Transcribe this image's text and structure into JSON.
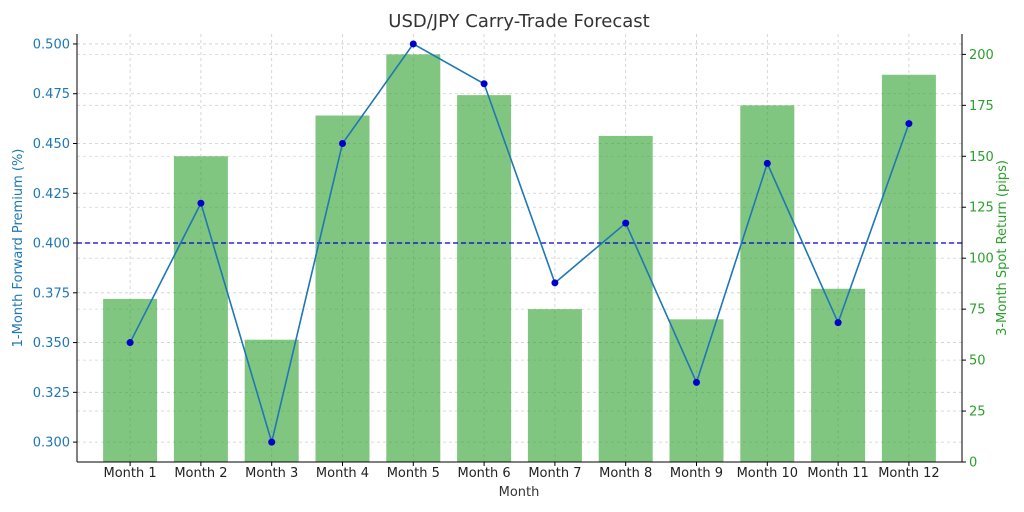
{
  "chart_data": {
    "type": "bar+line",
    "title": "USD/JPY Carry-Trade Forecast",
    "xlabel": "Month",
    "ylabel_left": "1-Month Forward Premium (%)",
    "ylabel_right": "3-Month Spot Return (pips)",
    "categories": [
      "Month 1",
      "Month 2",
      "Month 3",
      "Month 4",
      "Month 5",
      "Month 6",
      "Month 7",
      "Month 8",
      "Month 9",
      "Month 10",
      "Month 11",
      "Month 12"
    ],
    "line_series": {
      "values": [
        0.35,
        0.42,
        0.3,
        0.45,
        0.5,
        0.48,
        0.38,
        0.41,
        0.33,
        0.44,
        0.36,
        0.46
      ],
      "axis": "left",
      "color": "#1f77b4"
    },
    "bar_series": {
      "values": [
        80,
        150,
        60,
        170,
        200,
        180,
        75,
        160,
        70,
        175,
        85,
        190
      ],
      "axis": "right",
      "color": "#2ca02c"
    },
    "reference_line": {
      "value": 0.4,
      "axis": "left",
      "style": "dashed",
      "color": "#0000cc"
    },
    "left_axis": {
      "ylim": [
        0.29,
        0.505
      ],
      "ticks": [
        "0.300",
        "0.325",
        "0.350",
        "0.375",
        "0.400",
        "0.425",
        "0.450",
        "0.475",
        "0.500"
      ],
      "color": "#1f77b4"
    },
    "right_axis": {
      "ylim": [
        0,
        210
      ],
      "ticks": [
        "0",
        "25",
        "50",
        "75",
        "100",
        "125",
        "150",
        "175",
        "200"
      ],
      "color": "#2ca02c"
    },
    "grid": true
  }
}
